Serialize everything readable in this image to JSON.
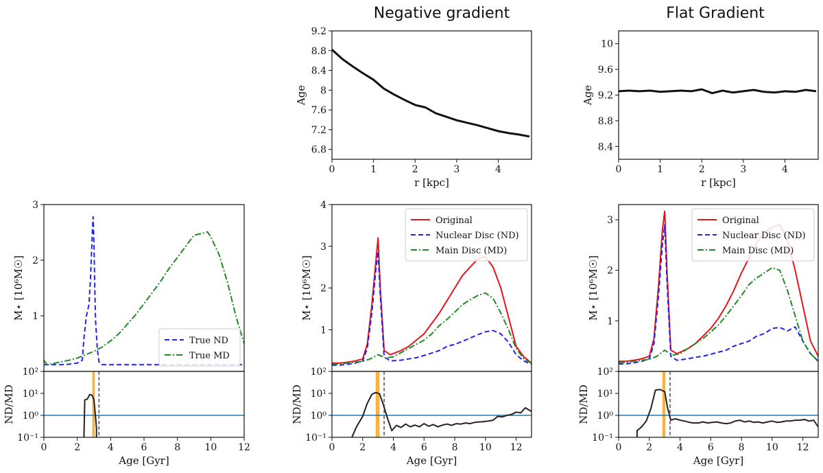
{
  "column_titles": [
    "",
    "Negative gradient",
    "Flat Gradient"
  ],
  "colors": {
    "original": "#e8141c",
    "nd": "#2222ee",
    "md": "#1f8a1f",
    "ratio": "#222222",
    "one_line": "#1f77b4",
    "age_line": "#f5a623",
    "dashed_marker": "#777777"
  },
  "chart_data": [
    {
      "id": "neg-age-profile",
      "type": "line",
      "xlabel": "r [kpc]",
      "ylabel": "Age",
      "xlim": [
        0,
        4.8
      ],
      "ylim": [
        6.6,
        9.2
      ],
      "xticks": [
        0,
        1,
        2,
        3,
        4
      ],
      "yticks": [
        6.8,
        7.2,
        7.6,
        8.0,
        8.4,
        8.8,
        9.2
      ],
      "series": [
        {
          "key": "profile",
          "x": [
            0,
            0.25,
            0.5,
            0.75,
            1.0,
            1.25,
            1.5,
            1.75,
            2.0,
            2.25,
            2.5,
            2.75,
            3.0,
            3.25,
            3.5,
            3.75,
            4.0,
            4.25,
            4.5,
            4.75
          ],
          "y": [
            8.82,
            8.63,
            8.48,
            8.34,
            8.21,
            8.03,
            7.91,
            7.8,
            7.7,
            7.65,
            7.53,
            7.46,
            7.39,
            7.34,
            7.29,
            7.23,
            7.17,
            7.13,
            7.1,
            7.06
          ]
        }
      ]
    },
    {
      "id": "flat-age-profile",
      "type": "line",
      "xlabel": "r [kpc]",
      "ylabel": "Age",
      "xlim": [
        0,
        4.8
      ],
      "ylim": [
        8.2,
        10.2
      ],
      "xticks": [
        0,
        1,
        2,
        3,
        4
      ],
      "yticks": [
        8.4,
        8.8,
        9.2,
        9.6,
        10.0
      ],
      "series": [
        {
          "key": "profile",
          "x": [
            0,
            0.25,
            0.5,
            0.75,
            1.0,
            1.25,
            1.5,
            1.75,
            2.0,
            2.25,
            2.5,
            2.75,
            3.0,
            3.25,
            3.5,
            3.75,
            4.0,
            4.25,
            4.5,
            4.75
          ],
          "y": [
            9.26,
            9.27,
            9.26,
            9.27,
            9.25,
            9.26,
            9.27,
            9.26,
            9.29,
            9.23,
            9.27,
            9.24,
            9.26,
            9.28,
            9.25,
            9.24,
            9.26,
            9.25,
            9.28,
            9.26
          ]
        }
      ]
    },
    {
      "id": "true-mass",
      "type": "line",
      "xlabel": "",
      "ylabel": "M⋆ [10⁶M☉]",
      "xlim": [
        0,
        12
      ],
      "ylim": [
        0,
        3
      ],
      "yticks": [
        1,
        2,
        3
      ],
      "legend": "lower-right",
      "series": [
        {
          "key": "nd",
          "name": "True ND",
          "x": [
            0,
            0.3,
            1.0,
            1.5,
            2.0,
            2.3,
            2.4,
            2.55,
            2.7,
            2.8,
            2.9,
            2.95,
            3.0,
            3.05,
            3.1,
            3.2,
            3.3,
            3.5,
            4.0,
            12
          ],
          "y": [
            0.12,
            0.12,
            0.12,
            0.13,
            0.15,
            0.2,
            0.6,
            1.0,
            1.2,
            1.7,
            2.5,
            2.78,
            2.3,
            1.5,
            0.9,
            0.4,
            0.17,
            0.12,
            0.12,
            0.12
          ]
        },
        {
          "key": "md",
          "name": "True MD",
          "x": [
            0,
            0.2,
            0.5,
            1.0,
            1.5,
            2.0,
            2.5,
            3.0,
            3.5,
            4.0,
            4.5,
            5.0,
            5.5,
            6.0,
            6.5,
            7.0,
            7.5,
            8.0,
            8.5,
            9.0,
            9.5,
            9.8,
            10.0,
            10.5,
            11.0,
            11.5,
            12.0
          ],
          "y": [
            0.2,
            0.12,
            0.14,
            0.17,
            0.2,
            0.24,
            0.3,
            0.36,
            0.44,
            0.55,
            0.68,
            0.85,
            1.02,
            1.22,
            1.42,
            1.62,
            1.85,
            2.05,
            2.25,
            2.45,
            2.48,
            2.51,
            2.42,
            2.1,
            1.6,
            1.0,
            0.5
          ]
        }
      ]
    },
    {
      "id": "neg-mass",
      "type": "line",
      "xlabel": "",
      "ylabel": "M⋆ [10⁶M☉]",
      "xlim": [
        0,
        13
      ],
      "ylim": [
        0,
        4
      ],
      "yticks": [
        1,
        2,
        3,
        4
      ],
      "legend": "upper-right",
      "series": [
        {
          "key": "original",
          "name": "Original",
          "x": [
            0,
            0.5,
            1.0,
            1.5,
            2.0,
            2.3,
            2.6,
            2.85,
            3.0,
            3.15,
            3.4,
            3.8,
            4.5,
            5.0,
            5.5,
            6.0,
            6.5,
            7.0,
            7.5,
            8.0,
            8.5,
            9.0,
            9.5,
            10.0,
            10.5,
            11.0,
            11.5,
            12.0,
            12.5,
            13.0
          ],
          "y": [
            0.2,
            0.2,
            0.22,
            0.25,
            0.3,
            0.65,
            1.6,
            2.6,
            3.2,
            2.0,
            0.5,
            0.4,
            0.5,
            0.6,
            0.75,
            0.9,
            1.15,
            1.4,
            1.7,
            2.0,
            2.3,
            2.5,
            2.7,
            2.75,
            2.5,
            2.0,
            1.3,
            0.6,
            0.35,
            0.2
          ]
        },
        {
          "key": "nd",
          "name": "Nuclear Disc (ND)",
          "x": [
            0,
            0.5,
            1.0,
            1.5,
            2.0,
            2.3,
            2.6,
            2.85,
            3.0,
            3.15,
            3.4,
            3.8,
            4.5,
            5.0,
            5.5,
            6.0,
            6.5,
            7.0,
            7.5,
            8.0,
            8.5,
            9.0,
            9.5,
            10.0,
            10.5,
            11.0,
            11.5,
            12.0,
            12.5,
            13.0
          ],
          "y": [
            0.15,
            0.15,
            0.17,
            0.2,
            0.25,
            0.55,
            1.4,
            2.4,
            2.88,
            1.8,
            0.35,
            0.25,
            0.27,
            0.3,
            0.33,
            0.38,
            0.44,
            0.5,
            0.6,
            0.65,
            0.72,
            0.8,
            0.88,
            0.95,
            0.98,
            0.9,
            0.7,
            0.4,
            0.25,
            0.17
          ]
        },
        {
          "key": "md",
          "name": "Main Disc (MD)",
          "x": [
            0,
            0.5,
            1.0,
            1.5,
            2.0,
            2.5,
            3.0,
            3.5,
            4.0,
            4.5,
            5.0,
            5.5,
            6.0,
            6.5,
            7.0,
            7.5,
            8.0,
            8.5,
            9.0,
            9.5,
            10.0,
            10.5,
            11.0,
            11.5,
            12.0,
            12.5,
            13.0
          ],
          "y": [
            0.18,
            0.18,
            0.2,
            0.22,
            0.24,
            0.3,
            0.4,
            0.32,
            0.35,
            0.45,
            0.55,
            0.65,
            0.75,
            0.9,
            1.1,
            1.25,
            1.42,
            1.6,
            1.72,
            1.82,
            1.88,
            1.75,
            1.4,
            1.0,
            0.55,
            0.3,
            0.2
          ]
        }
      ]
    },
    {
      "id": "flat-mass",
      "type": "line",
      "xlabel": "",
      "ylabel": "M⋆ [10⁶M☉]",
      "xlim": [
        0,
        13
      ],
      "ylim": [
        0,
        3.3
      ],
      "yticks": [
        1,
        2,
        3
      ],
      "legend": "upper-right",
      "series": [
        {
          "key": "original",
          "name": "Original",
          "x": [
            0,
            0.5,
            1.0,
            1.5,
            2.0,
            2.3,
            2.6,
            2.85,
            3.0,
            3.15,
            3.4,
            3.8,
            4.5,
            5.0,
            5.5,
            6.0,
            6.5,
            7.0,
            7.5,
            8.0,
            8.5,
            9.0,
            9.5,
            10.0,
            10.5,
            11.0,
            11.5,
            12.0,
            12.5,
            13.0
          ],
          "y": [
            0.2,
            0.2,
            0.22,
            0.25,
            0.3,
            0.65,
            1.7,
            2.8,
            3.17,
            2.0,
            0.42,
            0.35,
            0.45,
            0.55,
            0.7,
            0.85,
            1.05,
            1.3,
            1.6,
            1.95,
            2.25,
            2.55,
            2.75,
            2.85,
            2.9,
            2.6,
            2.0,
            1.3,
            0.6,
            0.3
          ]
        },
        {
          "key": "nd",
          "name": "Nuclear Disc (ND)",
          "x": [
            0,
            0.5,
            1.0,
            1.5,
            2.0,
            2.3,
            2.6,
            2.85,
            3.0,
            3.15,
            3.4,
            3.8,
            4.5,
            5.0,
            5.5,
            6.0,
            6.5,
            7.0,
            7.5,
            8.0,
            8.5,
            9.0,
            9.5,
            10.0,
            10.5,
            11.0,
            11.5,
            12.0,
            12.5,
            13.0
          ],
          "y": [
            0.15,
            0.15,
            0.17,
            0.2,
            0.25,
            0.55,
            1.5,
            2.5,
            2.9,
            1.8,
            0.3,
            0.22,
            0.25,
            0.28,
            0.3,
            0.34,
            0.38,
            0.42,
            0.5,
            0.55,
            0.6,
            0.7,
            0.75,
            0.85,
            0.87,
            0.8,
            0.88,
            0.6,
            0.35,
            0.2
          ]
        },
        {
          "key": "md",
          "name": "Main Disc (MD)",
          "x": [
            0,
            0.5,
            1.0,
            1.5,
            2.0,
            2.5,
            3.0,
            3.5,
            4.0,
            4.5,
            5.0,
            5.5,
            6.0,
            6.5,
            7.0,
            7.5,
            8.0,
            8.5,
            9.0,
            9.5,
            10.0,
            10.5,
            11.0,
            11.5,
            12.0,
            12.5,
            13.0
          ],
          "y": [
            0.18,
            0.18,
            0.2,
            0.22,
            0.24,
            0.3,
            0.42,
            0.32,
            0.35,
            0.45,
            0.55,
            0.65,
            0.78,
            0.92,
            1.1,
            1.3,
            1.5,
            1.72,
            1.85,
            1.95,
            2.05,
            2.0,
            1.6,
            1.1,
            0.6,
            0.35,
            0.2
          ]
        }
      ]
    },
    {
      "id": "true-ratio",
      "type": "line",
      "xlabel": "Age [Gyr]",
      "ylabel": "ND/MD",
      "scale": "log",
      "xlim": [
        0,
        12
      ],
      "ylim": [
        0.1,
        100
      ],
      "xticks": [
        0,
        2,
        4,
        6,
        8,
        10,
        12
      ],
      "yticks": [
        0.1,
        1,
        10,
        100
      ],
      "yticklabels": [
        "10⁻¹",
        "10⁰",
        "10¹",
        "10²"
      ],
      "hline": 1,
      "age_band": [
        2.9,
        3.05
      ],
      "dashed_x": 3.3,
      "series": [
        {
          "key": "ratio",
          "x": [
            2.4,
            2.45,
            2.6,
            2.75,
            2.9,
            3.0,
            3.05,
            3.1,
            3.15,
            3.15
          ],
          "y": [
            0.1,
            5,
            5.5,
            9,
            8,
            5,
            2,
            0.8,
            0.25,
            0.1
          ]
        }
      ]
    },
    {
      "id": "neg-ratio",
      "type": "line",
      "xlabel": "Age [Gyr]",
      "ylabel": "ND/MD",
      "scale": "log",
      "xlim": [
        0,
        13
      ],
      "ylim": [
        0.1,
        100
      ],
      "xticks": [
        0,
        2,
        4,
        6,
        8,
        10,
        12
      ],
      "yticks": [
        0.1,
        1,
        10,
        100
      ],
      "yticklabels": [
        "10⁻¹",
        "10⁰",
        "10¹",
        "10²"
      ],
      "hline": 1,
      "age_band": [
        2.85,
        3.1
      ],
      "dashed_x": 3.4,
      "series": [
        {
          "key": "ratio",
          "x": [
            1.3,
            1.6,
            2.0,
            2.3,
            2.6,
            2.85,
            3.1,
            3.35,
            3.6,
            3.9,
            4.2,
            4.5,
            4.8,
            5.1,
            5.4,
            5.7,
            6.0,
            6.3,
            6.6,
            6.9,
            7.2,
            7.5,
            7.8,
            8.1,
            8.4,
            8.7,
            9.0,
            9.3,
            9.6,
            9.9,
            10.2,
            10.5,
            10.8,
            11.1,
            11.4,
            11.7,
            12.0,
            12.3,
            12.6,
            13.0
          ],
          "y": [
            0.1,
            0.3,
            0.9,
            3.5,
            9,
            11,
            9.5,
            3,
            0.8,
            0.2,
            0.35,
            0.28,
            0.4,
            0.3,
            0.36,
            0.3,
            0.42,
            0.32,
            0.38,
            0.3,
            0.36,
            0.4,
            0.35,
            0.42,
            0.4,
            0.45,
            0.42,
            0.48,
            0.5,
            0.52,
            0.55,
            0.6,
            0.9,
            0.85,
            1.0,
            1.1,
            1.4,
            1.3,
            2.2,
            1.5
          ]
        }
      ]
    },
    {
      "id": "flat-ratio",
      "type": "line",
      "xlabel": "Age [Gyr]",
      "ylabel": "ND/MD",
      "scale": "log",
      "xlim": [
        0,
        13
      ],
      "ylim": [
        0.1,
        100
      ],
      "xticks": [
        0,
        2,
        4,
        6,
        8,
        10,
        12
      ],
      "yticks": [
        0.1,
        1,
        10,
        100
      ],
      "yticklabels": [
        "10⁻¹",
        "10⁰",
        "10¹",
        "10²"
      ],
      "hline": 1,
      "age_band": [
        2.85,
        3.05
      ],
      "dashed_x": 3.35,
      "series": [
        {
          "key": "ratio",
          "x": [
            1.2,
            1.2,
            1.5,
            1.8,
            2.1,
            2.4,
            2.7,
            3.0,
            3.2,
            3.4,
            3.7,
            4.0,
            4.3,
            4.6,
            4.9,
            5.2,
            5.5,
            5.8,
            6.1,
            6.4,
            6.7,
            7.0,
            7.3,
            7.6,
            7.9,
            8.2,
            8.5,
            8.8,
            9.1,
            9.4,
            9.7,
            10.0,
            10.3,
            10.6,
            10.9,
            11.2,
            11.5,
            11.8,
            12.1,
            12.4,
            12.7,
            13.0
          ],
          "y": [
            0.1,
            0.2,
            0.3,
            0.55,
            2,
            14,
            15,
            12,
            2,
            0.6,
            0.7,
            0.6,
            0.55,
            0.48,
            0.45,
            0.45,
            0.5,
            0.45,
            0.48,
            0.5,
            0.45,
            0.42,
            0.45,
            0.55,
            0.6,
            0.5,
            0.55,
            0.48,
            0.5,
            0.45,
            0.5,
            0.55,
            0.48,
            0.5,
            0.55,
            0.55,
            0.6,
            0.6,
            0.65,
            0.55,
            0.6,
            0.3
          ]
        }
      ]
    }
  ]
}
